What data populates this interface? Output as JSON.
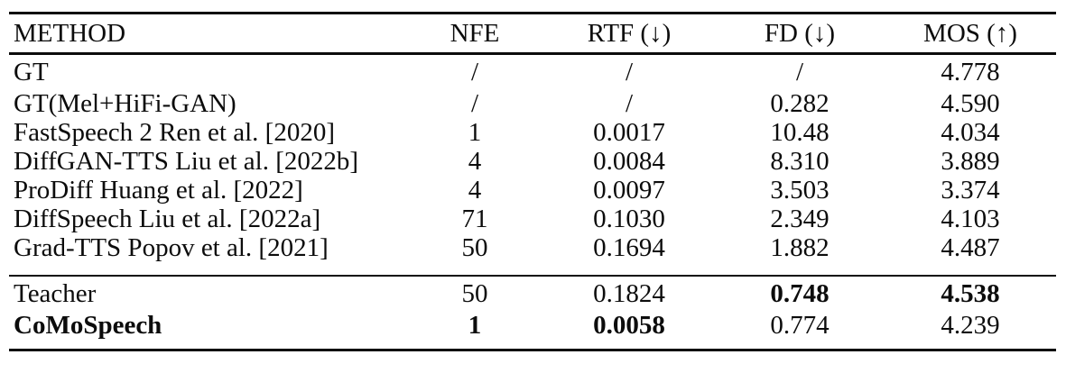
{
  "page": {
    "background_color": "#ffffff",
    "text_color": "#0c0c0c",
    "rule_color": "#0c0c0c"
  },
  "table": {
    "headers": [
      {
        "id": "method",
        "label": "METHOD"
      },
      {
        "id": "nfe",
        "label": "NFE"
      },
      {
        "id": "rtf",
        "label": "RTF (↓)"
      },
      {
        "id": "fd",
        "label": "FD (↓)"
      },
      {
        "id": "mos",
        "label": "MOS (↑)"
      }
    ],
    "arrow_icons": {
      "down": "↓",
      "up": "↑"
    },
    "groups": [
      {
        "name": "baselines",
        "rows": [
          {
            "cells": [
              "GT",
              "/",
              "/",
              "/",
              "4.778"
            ],
            "bold": [
              false,
              false,
              false,
              false,
              false
            ]
          },
          {
            "cells": [
              "GT(Mel+HiFi-GAN)",
              "/",
              "/",
              "0.282",
              "4.590"
            ],
            "bold": [
              false,
              false,
              false,
              false,
              false
            ]
          },
          {
            "cells": [
              "FastSpeech 2 Ren et al. [2020]",
              "1",
              "0.0017",
              "10.48",
              "4.034"
            ],
            "bold": [
              false,
              false,
              false,
              false,
              false
            ]
          },
          {
            "cells": [
              "DiffGAN-TTS Liu et al. [2022b]",
              "4",
              "0.0084",
              "8.310",
              "3.889"
            ],
            "bold": [
              false,
              false,
              false,
              false,
              false
            ]
          },
          {
            "cells": [
              "ProDiff Huang et al. [2022]",
              "4",
              "0.0097",
              "3.503",
              "3.374"
            ],
            "bold": [
              false,
              false,
              false,
              false,
              false
            ]
          },
          {
            "cells": [
              "DiffSpeech Liu et al. [2022a]",
              "71",
              "0.1030",
              "2.349",
              "4.103"
            ],
            "bold": [
              false,
              false,
              false,
              false,
              false
            ]
          },
          {
            "cells": [
              "Grad-TTS Popov et al. [2021]",
              "50",
              "0.1694",
              "1.882",
              "4.487"
            ],
            "bold": [
              false,
              false,
              false,
              false,
              false
            ]
          }
        ]
      },
      {
        "name": "proposed",
        "rows": [
          {
            "cells": [
              "Teacher",
              "50",
              "0.1824",
              "0.748",
              "4.538"
            ],
            "bold": [
              false,
              false,
              false,
              true,
              true
            ]
          },
          {
            "cells": [
              "CoMoSpeech",
              "1",
              "0.0058",
              "0.774",
              "4.239"
            ],
            "bold": [
              true,
              true,
              true,
              false,
              false
            ]
          }
        ]
      }
    ]
  }
}
